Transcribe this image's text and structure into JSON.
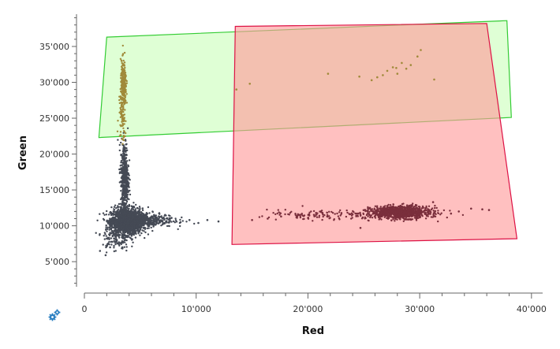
{
  "chart_data": {
    "type": "scatter",
    "xlabel": "Red",
    "ylabel": "Green",
    "xlim": [
      0,
      41000
    ],
    "ylim": [
      1500,
      39500
    ],
    "x_ticks": [
      {
        "value": 0,
        "label": "0"
      },
      {
        "value": 10000,
        "label": "10'000"
      },
      {
        "value": 20000,
        "label": "20'000"
      },
      {
        "value": 30000,
        "label": "30'000"
      },
      {
        "value": 40000,
        "label": "40'000"
      }
    ],
    "y_ticks": [
      {
        "value": 5000,
        "label": "5'000"
      },
      {
        "value": 10000,
        "label": "10'000"
      },
      {
        "value": 15000,
        "label": "15'000"
      },
      {
        "value": 20000,
        "label": "20'000"
      },
      {
        "value": 25000,
        "label": "25'000"
      },
      {
        "value": 30000,
        "label": "30'000"
      },
      {
        "value": 35000,
        "label": "35'000"
      }
    ],
    "gates": [
      {
        "color": "#33cc33",
        "fill": "#ccffbb",
        "vertices": [
          [
            2000,
            36300
          ],
          [
            37800,
            38600
          ],
          [
            38200,
            25100
          ],
          [
            1300,
            22300
          ]
        ]
      },
      {
        "color": "#dd1144",
        "fill": "#ff9999",
        "vertices": [
          [
            13500,
            37800
          ],
          [
            36000,
            38200
          ],
          [
            38700,
            8200
          ],
          [
            13200,
            7400
          ]
        ]
      }
    ],
    "series": [
      {
        "color": "#454a55",
        "clusters": [
          {
            "x": 3800,
            "y": 10600,
            "sx": 700,
            "sy": 900,
            "n": 1600
          },
          {
            "x": 3600,
            "y": 16500,
            "sx": 180,
            "sy": 2600,
            "n": 500
          },
          {
            "x": 5200,
            "y": 10800,
            "sx": 1400,
            "sy": 500,
            "n": 450
          },
          {
            "x": 2800,
            "y": 8200,
            "sx": 600,
            "sy": 900,
            "n": 120
          }
        ],
        "points": [
          [
            1400,
            6500
          ],
          [
            1900,
            5900
          ],
          [
            2300,
            7000
          ],
          [
            7800,
            11100
          ],
          [
            8600,
            10500
          ],
          [
            9400,
            10800
          ],
          [
            10200,
            10400
          ],
          [
            11000,
            10800
          ],
          [
            12000,
            10600
          ]
        ]
      },
      {
        "color": "#a08a3a",
        "clusters": [
          {
            "x": 3500,
            "y": 29500,
            "sx": 130,
            "sy": 1700,
            "n": 260
          },
          {
            "x": 3400,
            "y": 25200,
            "sx": 160,
            "sy": 1800,
            "n": 70
          }
        ],
        "points": [
          [
            13600,
            29000
          ],
          [
            14800,
            29800
          ],
          [
            21800,
            31200
          ],
          [
            24600,
            30800
          ],
          [
            25700,
            30300
          ],
          [
            26700,
            31000
          ],
          [
            27100,
            31600
          ],
          [
            27600,
            32100
          ],
          [
            28000,
            31200
          ],
          [
            28400,
            32700
          ],
          [
            28800,
            31900
          ],
          [
            29200,
            32400
          ],
          [
            29800,
            33600
          ],
          [
            30100,
            34500
          ],
          [
            31300,
            30400
          ],
          [
            27900,
            32000
          ],
          [
            26200,
            30700
          ]
        ]
      },
      {
        "color": "#7a2f3c",
        "clusters": [
          {
            "x": 28300,
            "y": 11900,
            "sx": 1300,
            "sy": 430,
            "n": 950
          },
          {
            "x": 24000,
            "y": 11600,
            "sx": 3600,
            "sy": 380,
            "n": 160
          },
          {
            "x": 19000,
            "y": 11400,
            "sx": 1800,
            "sy": 300,
            "n": 40
          }
        ],
        "points": [
          [
            15000,
            10800
          ],
          [
            16400,
            11000
          ],
          [
            17600,
            11300
          ],
          [
            33500,
            12000
          ],
          [
            34600,
            12400
          ],
          [
            35600,
            12300
          ],
          [
            36200,
            12200
          ],
          [
            32800,
            11700
          ],
          [
            24700,
            9700
          ],
          [
            31200,
            13300
          ]
        ]
      }
    ]
  },
  "ui": {
    "settings_icon": "gears-icon"
  }
}
